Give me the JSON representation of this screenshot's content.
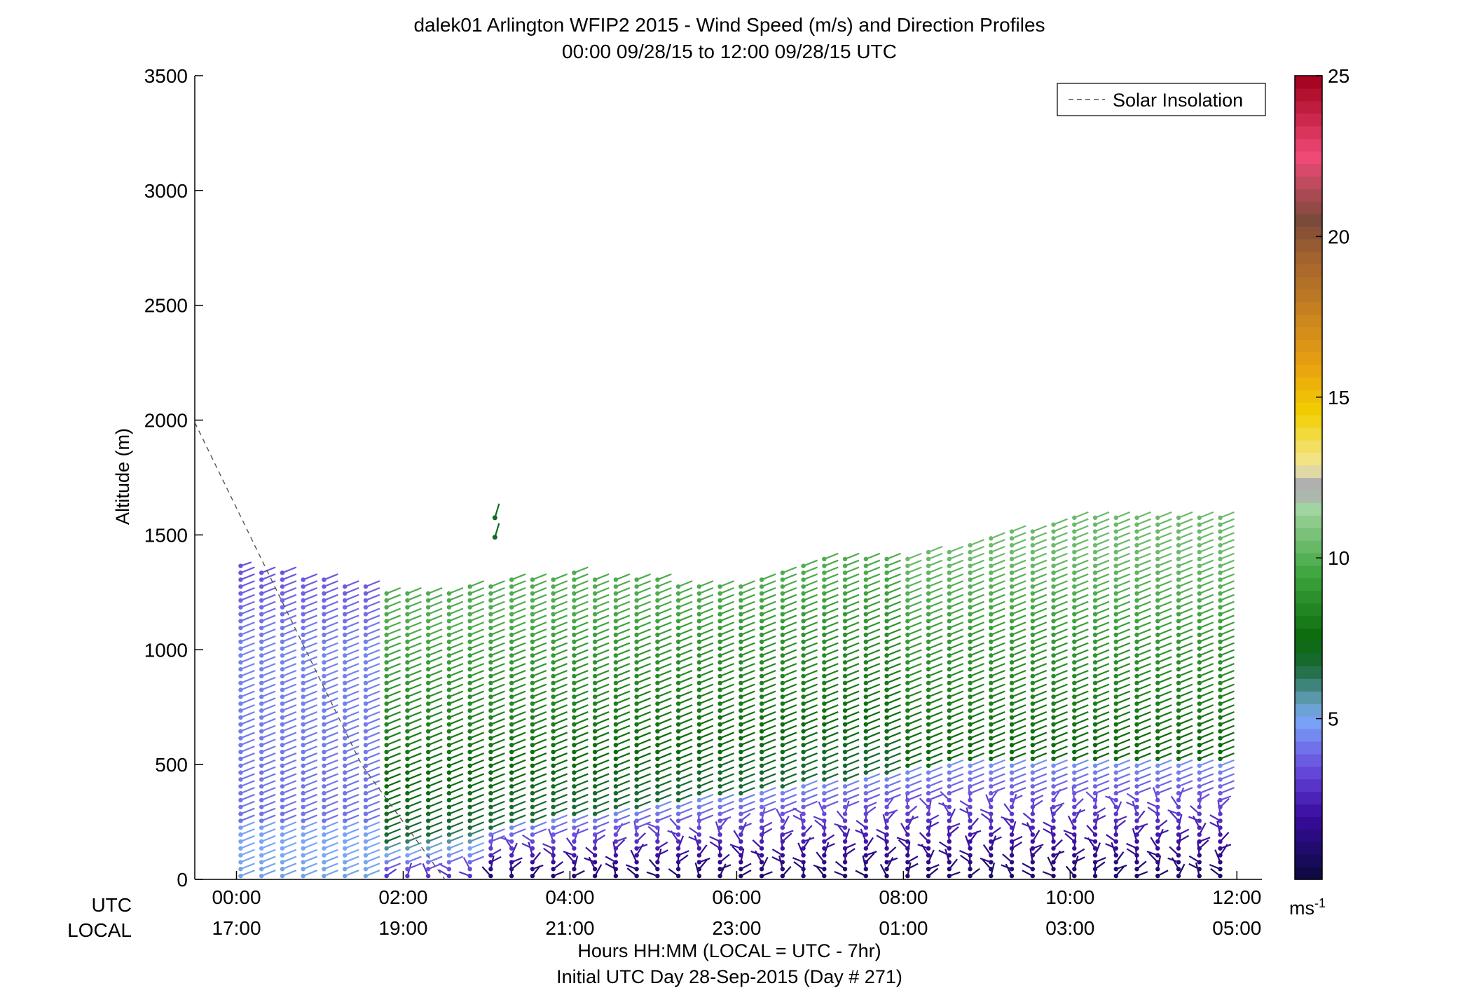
{
  "chart_data": {
    "type": "wind-barb-profile",
    "title": "dalek01 Arlington WFIP2 2015 - Wind Speed (m/s) and Direction Profiles",
    "subtitle": "00:00 09/28/15 to 12:00 09/28/15  UTC",
    "ylabel": "Altitude (m)",
    "xlabel": "Hours HH:MM  (LOCAL = UTC - 7hr)",
    "xlabel2": "Initial UTC Day 28-Sep-2015 (Day # 271)",
    "row_label_utc": "UTC",
    "row_label_local": "LOCAL",
    "ylim": [
      0,
      3500
    ],
    "y_ticks": [
      0,
      500,
      1000,
      1500,
      2000,
      2500,
      3000,
      3500
    ],
    "xlim_hours": [
      -0.5,
      12.3
    ],
    "x_tick_hours": [
      0,
      2,
      4,
      6,
      8,
      10,
      12
    ],
    "x_ticks_utc": [
      "00:00",
      "02:00",
      "04:00",
      "06:00",
      "08:00",
      "10:00",
      "12:00"
    ],
    "x_ticks_local": [
      "17:00",
      "19:00",
      "21:00",
      "23:00",
      "01:00",
      "03:00",
      "05:00"
    ],
    "legend": {
      "label": "Solar Insolation",
      "placement": "top-right",
      "style": "dashed gray line"
    },
    "solar_insolation_line": {
      "x": [
        -0.5,
        1.5,
        2.5
      ],
      "y": [
        1990,
        500,
        0
      ]
    },
    "colorbar": {
      "label": "ms⁻¹",
      "ticks": [
        5,
        10,
        15,
        20,
        25
      ],
      "range": [
        0,
        25
      ],
      "stops": [
        {
          "v": 0,
          "color": "#0a0a3c"
        },
        {
          "v": 2,
          "color": "#3a0ca0"
        },
        {
          "v": 3.5,
          "color": "#6a4ee0"
        },
        {
          "v": 5,
          "color": "#7aa8f8"
        },
        {
          "v": 5.6,
          "color": "#5e9ab0"
        },
        {
          "v": 6.6,
          "color": "#1a6a3a"
        },
        {
          "v": 7.5,
          "color": "#0b6b0b"
        },
        {
          "v": 9.5,
          "color": "#3ea53e"
        },
        {
          "v": 11.6,
          "color": "#a4d6a4"
        },
        {
          "v": 12.0,
          "color": "#b0b0b0"
        },
        {
          "v": 12.4,
          "color": "#b0b0b0"
        },
        {
          "v": 12.8,
          "color": "#f2e8a0"
        },
        {
          "v": 14.5,
          "color": "#f2d000"
        },
        {
          "v": 16,
          "color": "#e8a010"
        },
        {
          "v": 19.5,
          "color": "#a06030"
        },
        {
          "v": 20.5,
          "color": "#7a4a3a"
        },
        {
          "v": 22.5,
          "color": "#f04a78"
        },
        {
          "v": 25,
          "color": "#a0001a"
        }
      ]
    },
    "profiles": {
      "time_step_hours": 0.25,
      "start_hour": 0.05,
      "end_hour": 11.8,
      "height_step_m": 30,
      "barb_speed_m_s": {
        "lowest_levels": "0.5-3",
        "boundary_layer_top_m": 300,
        "mid_levels": "5-7",
        "upper_levels": "8-10"
      },
      "top_height_m": {
        "00:00": 1380,
        "02:00": 1250,
        "04:00": 1340,
        "06:00": 1280,
        "07:00": 1420,
        "08:00": 1400,
        "10:00": 1580,
        "12:00": 1580
      },
      "isolated_points": [
        {
          "hour": 3.1,
          "altitude": 1575,
          "speed": 7
        },
        {
          "hour": 3.1,
          "altitude": 1490,
          "speed": 7
        }
      ]
    }
  }
}
